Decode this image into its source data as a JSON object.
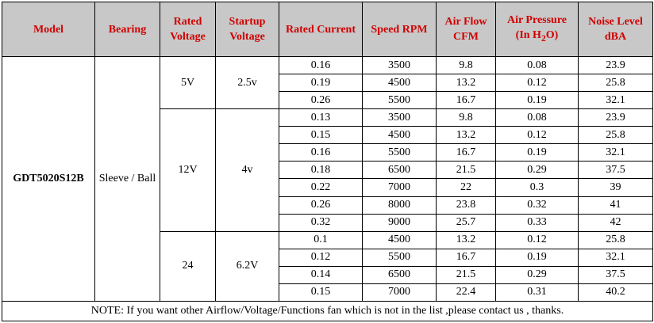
{
  "headers": {
    "model": "Model",
    "bearing": "Bearing",
    "rated_voltage": [
      "Rated",
      "Voltage"
    ],
    "startup_voltage": [
      "Startup",
      "Voltage"
    ],
    "rated_current": "Rated Current",
    "speed": "Speed RPM",
    "air_flow": [
      "Air Flow",
      "CFM"
    ],
    "air_pressure": [
      "Air Pressure",
      "(In H",
      "2",
      "O)"
    ],
    "noise": [
      "Noise Level",
      "dBA"
    ]
  },
  "model": "GDT5020S12B",
  "bearing": "Sleeve / Ball",
  "groups": [
    {
      "voltage": "5V",
      "startup": "2.5v"
    },
    {
      "voltage": "12V",
      "startup": "4v"
    },
    {
      "voltage": "24",
      "startup": "6.2V"
    }
  ],
  "rows": [
    [
      "0.16",
      "3500",
      "9.8",
      "0.08",
      "23.9"
    ],
    [
      "0.19",
      "4500",
      "13.2",
      "0.12",
      "25.8"
    ],
    [
      "0.26",
      "5500",
      "16.7",
      "0.19",
      "32.1"
    ],
    [
      "0.13",
      "3500",
      "9.8",
      "0.08",
      "23.9"
    ],
    [
      "0.15",
      "4500",
      "13.2",
      "0.12",
      "25.8"
    ],
    [
      "0.16",
      "5500",
      "16.7",
      "0.19",
      "32.1"
    ],
    [
      "0.18",
      "6500",
      "21.5",
      "0.29",
      "37.5"
    ],
    [
      "0.22",
      "7000",
      "22",
      "0.3",
      "39"
    ],
    [
      "0.26",
      "8000",
      "23.8",
      "0.32",
      "41"
    ],
    [
      "0.32",
      "9000",
      "25.7",
      "0.33",
      "42"
    ],
    [
      "0.1",
      "4500",
      "13.2",
      "0.12",
      "25.8"
    ],
    [
      "0.12",
      "5500",
      "16.7",
      "0.19",
      "32.1"
    ],
    [
      "0.14",
      "6500",
      "21.5",
      "0.29",
      "37.5"
    ],
    [
      "0.15",
      "7000",
      "22.4",
      "0.31",
      "40.2"
    ]
  ],
  "note": "NOTE: If you want other Airflow/Voltage/Functions fan which is not in the list ,please contact us , thanks.",
  "colors": {
    "header_bg": "#c8c8c8",
    "header_text": "#d00000",
    "note_text": "#b5179e"
  }
}
